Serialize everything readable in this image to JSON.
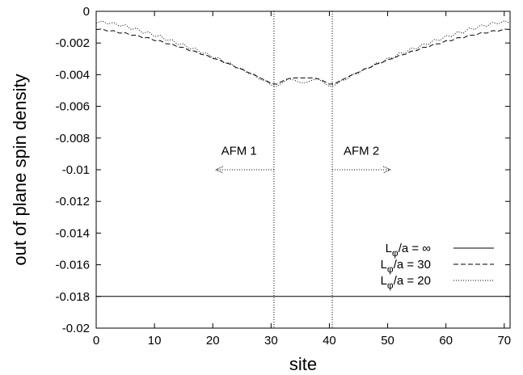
{
  "chart_data": {
    "type": "line",
    "title": "",
    "xlabel": "site",
    "ylabel": "out of plane spin density",
    "xlim": [
      0,
      71
    ],
    "ylim": [
      -0.02,
      0
    ],
    "xticks": [
      0,
      10,
      20,
      30,
      40,
      50,
      60,
      70
    ],
    "yticks": [
      0,
      -0.002,
      -0.004,
      -0.006,
      -0.008,
      -0.01,
      -0.012,
      -0.014,
      -0.016,
      -0.018,
      -0.02
    ],
    "xtick_labels": [
      "0",
      "10",
      "20",
      "30",
      "40",
      "50",
      "60",
      "70"
    ],
    "ytick_labels": [
      "0",
      "-0.002",
      "-0.004",
      "-0.006",
      "-0.008",
      "-0.01",
      "-0.012",
      "-0.014",
      "-0.016",
      "-0.018",
      "-0.02"
    ],
    "grid": false,
    "legend_position": "bottom-right",
    "vertical_lines": [
      30.5,
      40.5
    ],
    "annotations": [
      {
        "text": "AFM 1",
        "x": 24.5,
        "y": -0.0088,
        "arrow_from": 30.5,
        "arrow_to": 20.5,
        "arrow_y": -0.01
      },
      {
        "text": "AFM 2",
        "x": 45.5,
        "y": -0.0088,
        "arrow_from": 40.5,
        "arrow_to": 50.5,
        "arrow_y": -0.01
      }
    ],
    "series": [
      {
        "name_main": "L",
        "name_sub": "φ",
        "name_rest": "/a = ∞",
        "style": "solid",
        "x": [
          0,
          71
        ],
        "y": [
          -0.018,
          -0.018
        ]
      },
      {
        "name_main": "L",
        "name_sub": "φ",
        "name_rest": "/a = 30",
        "style": "dashed",
        "x": [
          0,
          1,
          2,
          3,
          4,
          5,
          6,
          7,
          8,
          9,
          10,
          11,
          12,
          13,
          14,
          15,
          16,
          17,
          18,
          19,
          20,
          21,
          22,
          23,
          24,
          25,
          26,
          27,
          28,
          29,
          30,
          31,
          32,
          33,
          34,
          35,
          36,
          37,
          38,
          39,
          40,
          41,
          42,
          43,
          44,
          45,
          46,
          47,
          48,
          49,
          50,
          51,
          52,
          53,
          54,
          55,
          56,
          57,
          58,
          59,
          60,
          61,
          62,
          63,
          64,
          65,
          66,
          67,
          68,
          69,
          70,
          71
        ],
        "y": [
          -0.00115,
          -0.00112,
          -0.00125,
          -0.00122,
          -0.00138,
          -0.00135,
          -0.00152,
          -0.0015,
          -0.00168,
          -0.00166,
          -0.00185,
          -0.00185,
          -0.00205,
          -0.00206,
          -0.00225,
          -0.00228,
          -0.00248,
          -0.00252,
          -0.00272,
          -0.00278,
          -0.00298,
          -0.00305,
          -0.00325,
          -0.00333,
          -0.00355,
          -0.00365,
          -0.00385,
          -0.00398,
          -0.00418,
          -0.00435,
          -0.00455,
          -0.0046,
          -0.0044,
          -0.00425,
          -0.0042,
          -0.0042,
          -0.0042,
          -0.0042,
          -0.00425,
          -0.0044,
          -0.0046,
          -0.00455,
          -0.00435,
          -0.00418,
          -0.00398,
          -0.00385,
          -0.00365,
          -0.00355,
          -0.00333,
          -0.00325,
          -0.00305,
          -0.00298,
          -0.00278,
          -0.00272,
          -0.00252,
          -0.00248,
          -0.00228,
          -0.00225,
          -0.00206,
          -0.00205,
          -0.00185,
          -0.00185,
          -0.00166,
          -0.00168,
          -0.0015,
          -0.00152,
          -0.00135,
          -0.00138,
          -0.00122,
          -0.00125,
          -0.00112,
          -0.00115
        ]
      },
      {
        "name_main": "L",
        "name_sub": "φ",
        "name_rest": "/a = 20",
        "style": "dotted",
        "x": [
          0,
          1,
          2,
          3,
          4,
          5,
          6,
          7,
          8,
          9,
          10,
          11,
          12,
          13,
          14,
          15,
          16,
          17,
          18,
          19,
          20,
          21,
          22,
          23,
          24,
          25,
          26,
          27,
          28,
          29,
          30,
          31,
          32,
          33,
          34,
          35,
          36,
          37,
          38,
          39,
          40,
          41,
          42,
          43,
          44,
          45,
          46,
          47,
          48,
          49,
          50,
          51,
          52,
          53,
          54,
          55,
          56,
          57,
          58,
          59,
          60,
          61,
          62,
          63,
          64,
          65,
          66,
          67,
          68,
          69,
          70,
          71
        ],
        "y": [
          -0.00075,
          -0.0006,
          -0.0008,
          -0.0007,
          -0.00095,
          -0.00085,
          -0.00115,
          -0.00105,
          -0.00138,
          -0.00128,
          -0.0016,
          -0.00152,
          -0.00185,
          -0.00178,
          -0.0021,
          -0.00205,
          -0.00238,
          -0.00232,
          -0.00265,
          -0.00262,
          -0.00295,
          -0.00292,
          -0.00325,
          -0.00325,
          -0.00358,
          -0.0036,
          -0.00392,
          -0.00398,
          -0.0043,
          -0.00438,
          -0.00465,
          -0.00475,
          -0.0045,
          -0.00425,
          -0.00435,
          -0.0045,
          -0.0045,
          -0.00435,
          -0.00425,
          -0.0045,
          -0.00475,
          -0.00465,
          -0.00438,
          -0.0043,
          -0.00398,
          -0.00392,
          -0.0036,
          -0.00358,
          -0.00325,
          -0.00325,
          -0.00292,
          -0.00295,
          -0.00262,
          -0.00265,
          -0.00232,
          -0.00238,
          -0.00205,
          -0.0021,
          -0.00178,
          -0.00185,
          -0.00152,
          -0.0016,
          -0.00128,
          -0.00138,
          -0.00105,
          -0.00115,
          -0.00085,
          -0.00095,
          -0.0007,
          -0.0008,
          -0.0006,
          -0.00075
        ]
      }
    ]
  }
}
